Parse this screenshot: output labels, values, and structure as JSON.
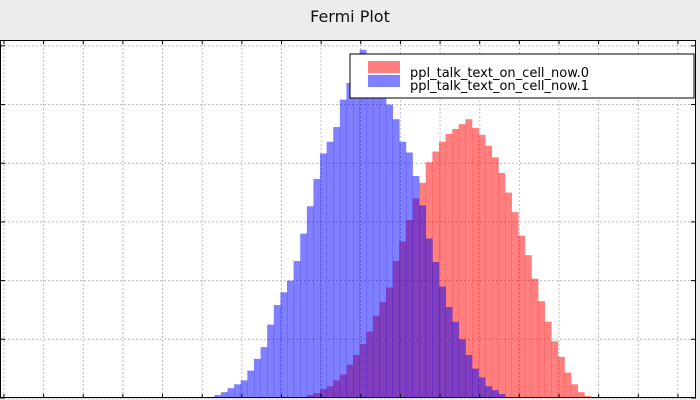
{
  "window": {
    "title": "Fermi Plot"
  },
  "colors": {
    "series0": "#ff0000",
    "series1": "#0000ff",
    "overlap": "#7f30b8",
    "plot_bg": "#ffffff",
    "page_bg": "#ececec",
    "grid": "#bdbdbd"
  },
  "chart_data": {
    "type": "histogram",
    "title": "Fermi Plot",
    "xlabel": "",
    "ylabel": "",
    "grid": true,
    "legend": "top-right",
    "bin_start": 185,
    "bin_width": 6,
    "series": [
      {
        "name": "ppl_talk_text_on_cell_now.0",
        "color": "#ff0000",
        "alpha": 0.5,
        "values": [
          0,
          0,
          0,
          0,
          0,
          0,
          0,
          0,
          0,
          0,
          0,
          0,
          0,
          0,
          1,
          3,
          5,
          9,
          12,
          18,
          24,
          34,
          44,
          55,
          68,
          84,
          98,
          113,
          140,
          160,
          182,
          204,
          220,
          241,
          252,
          262,
          270,
          275,
          280,
          285,
          276,
          269,
          258,
          246,
          230,
          210,
          190,
          166,
          146,
          122,
          99,
          78,
          58,
          42,
          26,
          14,
          6,
          2,
          0,
          0
        ]
      },
      {
        "name": "ppl_talk_text_on_cell_now.1",
        "color": "#0000ff",
        "alpha": 0.5,
        "values": [
          1,
          3,
          6,
          10,
          14,
          18,
          28,
          40,
          52,
          75,
          95,
          108,
          120,
          140,
          168,
          196,
          224,
          250,
          262,
          277,
          305,
          322,
          344,
          356,
          352,
          334,
          310,
          300,
          285,
          262,
          251,
          227,
          197,
          163,
          139,
          114,
          93,
          78,
          60,
          44,
          30,
          21,
          12,
          8,
          4,
          1,
          0,
          0,
          0,
          0,
          0,
          0,
          0,
          0,
          0,
          0,
          0,
          0,
          0,
          0
        ]
      }
    ],
    "ylim": [
      0,
      366
    ],
    "xlim": [
      -3.6,
      628.4
    ]
  }
}
